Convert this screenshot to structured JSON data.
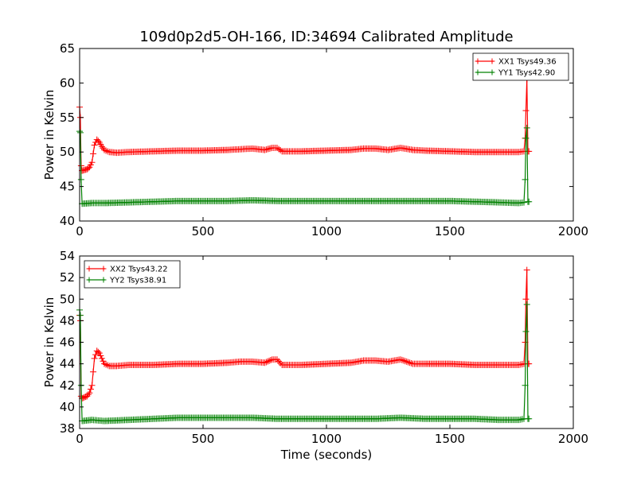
{
  "figure": {
    "title": "109d0p2d5-OH-166, ID:34694 Calibrated Amplitude"
  },
  "chart_data": [
    {
      "type": "line",
      "title": "109d0p2d5-OH-166, ID:34694 Calibrated Amplitude",
      "xlabel": "",
      "ylabel": "Power in Kelvin",
      "xlim": [
        0,
        2000
      ],
      "ylim": [
        40,
        65
      ],
      "x_ticks": [
        "0",
        "500",
        "1000",
        "1500",
        "2000"
      ],
      "y_ticks": [
        "40",
        "45",
        "50",
        "55",
        "60",
        "65"
      ],
      "grid": false,
      "legend_position": "top-right",
      "series": [
        {
          "name": "XX1 Tsys49.36",
          "color": "#ff0000",
          "marker": "plus",
          "x": [
            0,
            3,
            6,
            10,
            20,
            30,
            40,
            50,
            60,
            70,
            80,
            90,
            100,
            120,
            150,
            200,
            300,
            400,
            500,
            600,
            650,
            700,
            750,
            780,
            800,
            820,
            850,
            900,
            1000,
            1100,
            1150,
            1200,
            1250,
            1300,
            1350,
            1400,
            1500,
            1600,
            1700,
            1780,
            1800,
            1805,
            1808,
            1812,
            1816,
            1820
          ],
          "y": [
            56.5,
            55.0,
            48.0,
            47.3,
            47.4,
            47.5,
            47.8,
            48.5,
            51.0,
            51.8,
            51.4,
            50.8,
            50.3,
            50.0,
            49.9,
            50.0,
            50.1,
            50.2,
            50.2,
            50.3,
            50.4,
            50.5,
            50.3,
            50.6,
            50.6,
            50.1,
            50.1,
            50.1,
            50.2,
            50.3,
            50.5,
            50.5,
            50.3,
            50.6,
            50.3,
            50.2,
            50.1,
            50.0,
            50.0,
            50.0,
            50.1,
            52.0,
            56.0,
            60.5,
            50.1,
            50.1
          ]
        },
        {
          "name": "YY1 Tsys42.90",
          "color": "#008000",
          "marker": "plus",
          "x": [
            0,
            3,
            6,
            10,
            50,
            100,
            200,
            300,
            400,
            500,
            600,
            700,
            800,
            900,
            1000,
            1100,
            1200,
            1300,
            1400,
            1500,
            1600,
            1700,
            1780,
            1800,
            1805,
            1808,
            1812,
            1816,
            1820
          ],
          "y": [
            53.0,
            52.8,
            46.0,
            42.5,
            42.6,
            42.6,
            42.7,
            42.8,
            42.9,
            42.9,
            42.9,
            43.0,
            42.9,
            42.9,
            42.9,
            42.9,
            42.9,
            42.9,
            42.9,
            42.9,
            42.8,
            42.7,
            42.6,
            42.7,
            46.0,
            52.0,
            53.5,
            42.8,
            42.8
          ]
        }
      ]
    },
    {
      "type": "line",
      "title": "",
      "xlabel": "Time (seconds)",
      "ylabel": "Power in Kelvin",
      "xlim": [
        0,
        2000
      ],
      "ylim": [
        38,
        54
      ],
      "x_ticks": [
        "0",
        "500",
        "1000",
        "1500",
        "2000"
      ],
      "y_ticks": [
        "38",
        "40",
        "42",
        "44",
        "46",
        "48",
        "50",
        "52",
        "54"
      ],
      "grid": false,
      "legend_position": "top-left",
      "series": [
        {
          "name": "XX2 Tsys43.22",
          "color": "#ff0000",
          "marker": "plus",
          "x": [
            0,
            3,
            6,
            10,
            20,
            30,
            40,
            50,
            60,
            70,
            80,
            90,
            100,
            120,
            150,
            200,
            300,
            400,
            500,
            600,
            650,
            700,
            750,
            780,
            800,
            820,
            850,
            900,
            1000,
            1100,
            1150,
            1200,
            1250,
            1300,
            1350,
            1400,
            1500,
            1600,
            1700,
            1780,
            1800,
            1805,
            1808,
            1812,
            1816,
            1820
          ],
          "y": [
            48.5,
            48.0,
            41.0,
            40.8,
            40.9,
            41.0,
            41.3,
            42.0,
            44.5,
            45.2,
            45.0,
            44.5,
            44.0,
            43.8,
            43.8,
            43.9,
            43.9,
            44.0,
            44.0,
            44.1,
            44.2,
            44.2,
            44.1,
            44.4,
            44.4,
            43.9,
            43.9,
            43.9,
            44.0,
            44.1,
            44.3,
            44.3,
            44.2,
            44.4,
            44.0,
            44.0,
            44.0,
            43.9,
            43.9,
            43.9,
            44.0,
            46.0,
            50.0,
            52.7,
            44.0,
            44.0
          ]
        },
        {
          "name": "YY2 Tsys38.91",
          "color": "#008000",
          "marker": "plus",
          "x": [
            0,
            3,
            6,
            10,
            50,
            100,
            200,
            300,
            400,
            500,
            600,
            700,
            800,
            900,
            1000,
            1100,
            1200,
            1300,
            1400,
            1500,
            1600,
            1700,
            1780,
            1800,
            1805,
            1808,
            1812,
            1816,
            1820
          ],
          "y": [
            49.0,
            48.5,
            42.0,
            38.7,
            38.8,
            38.7,
            38.8,
            38.9,
            39.0,
            39.0,
            39.0,
            39.0,
            38.9,
            38.9,
            38.9,
            38.9,
            38.9,
            39.0,
            38.9,
            38.9,
            38.9,
            38.8,
            38.8,
            38.9,
            42.0,
            47.0,
            49.5,
            38.9,
            38.9
          ]
        }
      ]
    }
  ]
}
